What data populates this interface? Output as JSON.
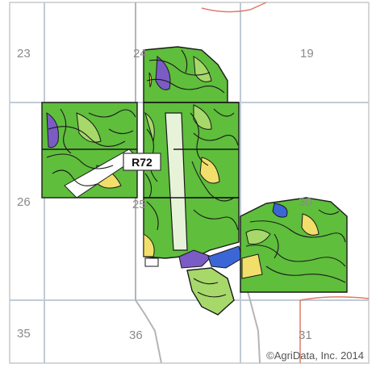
{
  "map": {
    "route_label": "R72",
    "credit": "©AgriData, Inc. 2014",
    "sections": [
      "23",
      "24",
      "19",
      "26",
      "25",
      "30",
      "35",
      "36",
      "31"
    ]
  },
  "colors": {
    "soil_green": "#5fbe3c",
    "soil_light_green": "#a6d96a",
    "soil_yellow": "#f2de6b",
    "soil_purple": "#7b5cc4",
    "soil_blue": "#3b66d6",
    "section_line": "#bfcbd6",
    "road": "#b7b7b7",
    "county_line": "#e07a6a"
  }
}
